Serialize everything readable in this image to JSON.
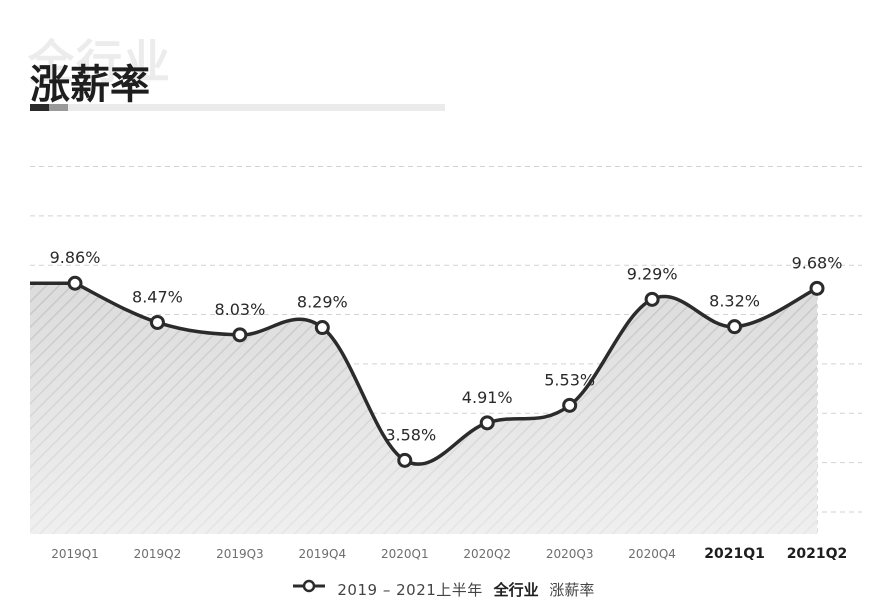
{
  "header": {
    "watermark": "全行业",
    "title": "涨薪率"
  },
  "legend": {
    "range": "2019 – 2021上半年",
    "segment": "全行业",
    "metric": "涨薪率"
  },
  "colors": {
    "line": "#2b2b2b",
    "fill": "#dcdcdc",
    "hatch": "#c6c6c6",
    "grid": "#d2d2d2",
    "axis_text": "#6e6e6e",
    "axis_text_bold": "#1e1e1e"
  },
  "chart_data": {
    "type": "area",
    "categories": [
      "2019Q1",
      "2019Q2",
      "2019Q3",
      "2019Q4",
      "2020Q1",
      "2020Q2",
      "2020Q3",
      "2020Q4",
      "2021Q1",
      "2021Q2"
    ],
    "bold_categories": [
      "2021Q1",
      "2021Q2"
    ],
    "series": [
      {
        "values": [
          9.86,
          8.47,
          8.03,
          8.29,
          3.58,
          4.91,
          5.53,
          9.29,
          8.32,
          9.68
        ],
        "labels": [
          "9.86%",
          "8.47%",
          "8.03%",
          "8.29%",
          "3.58%",
          "4.91%",
          "5.53%",
          "9.29%",
          "8.32%",
          "9.68%"
        ]
      }
    ],
    "y_unit": "%",
    "ylim": [
      0,
      16
    ],
    "grid": true,
    "y_ticks_shown": false,
    "legend_position": "bottom"
  }
}
